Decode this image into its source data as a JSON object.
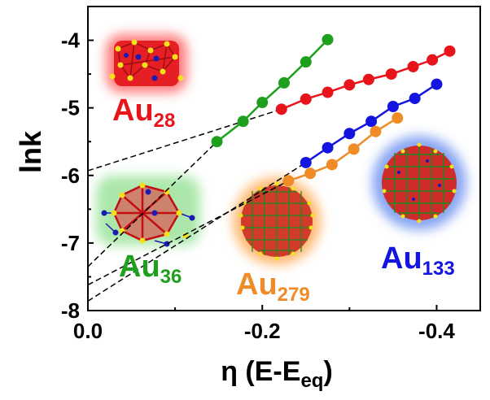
{
  "chart_data": {
    "type": "scatter",
    "xlabel": "η (E-E",
    "xlabel_sub": "eq",
    "xlabel_close": ")",
    "ylabel": "lnk",
    "xlim": [
      0.0,
      -0.45
    ],
    "ylim": [
      -8,
      -3.5
    ],
    "x_ticks": [
      {
        "value": 0.0,
        "label": "0.0"
      },
      {
        "value": -0.2,
        "label": "-0.2"
      },
      {
        "value": -0.4,
        "label": "-0.4"
      }
    ],
    "y_ticks": [
      {
        "value": -4,
        "label": "-4"
      },
      {
        "value": -5,
        "label": "-5"
      },
      {
        "value": -6,
        "label": "-6"
      },
      {
        "value": -7,
        "label": "-7"
      },
      {
        "value": -8,
        "label": "-8"
      }
    ],
    "series": [
      {
        "name": "Au28",
        "base": "Au",
        "sub": "28",
        "color": "#e8141c",
        "x": [
          -0.222,
          -0.25,
          -0.275,
          -0.3,
          -0.322,
          -0.348,
          -0.373,
          -0.395,
          -0.415
        ],
        "y": [
          -5.02,
          -4.87,
          -4.77,
          -4.66,
          -4.58,
          -4.5,
          -4.39,
          -4.29,
          -4.16
        ],
        "extrapolation": {
          "x": [
            0.0,
            -0.222
          ],
          "y": [
            -5.93,
            -5.02
          ]
        }
      },
      {
        "name": "Au36",
        "base": "Au",
        "sub": "36",
        "color": "#1ea01e",
        "x": [
          -0.148,
          -0.178,
          -0.2,
          -0.225,
          -0.25,
          -0.275
        ],
        "y": [
          -5.5,
          -5.2,
          -4.92,
          -4.63,
          -4.32,
          -3.99
        ],
        "extrapolation": {
          "x": [
            0.0,
            -0.148
          ],
          "y": [
            -7.35,
            -5.5
          ]
        }
      },
      {
        "name": "Au133",
        "base": "Au",
        "sub": "133",
        "color": "#1414e0",
        "x": [
          -0.25,
          -0.275,
          -0.3,
          -0.325,
          -0.35,
          -0.375,
          -0.4
        ],
        "y": [
          -5.81,
          -5.59,
          -5.38,
          -5.2,
          -4.98,
          -4.86,
          -4.65
        ],
        "extrapolation": {
          "x": [
            0.0,
            -0.25
          ],
          "y": [
            -7.86,
            -5.81
          ]
        }
      },
      {
        "name": "Au279",
        "base": "Au",
        "sub": "279",
        "color": "#f08c28",
        "x": [
          -0.23,
          -0.255,
          -0.28,
          -0.305,
          -0.33,
          -0.355
        ],
        "y": [
          -6.08,
          -5.97,
          -5.84,
          -5.61,
          -5.35,
          -5.15
        ],
        "extrapolation": {
          "x": [
            0.0,
            -0.23
          ],
          "y": [
            -7.62,
            -6.08
          ]
        }
      }
    ],
    "grid": false,
    "legend": "inline cluster labels"
  }
}
